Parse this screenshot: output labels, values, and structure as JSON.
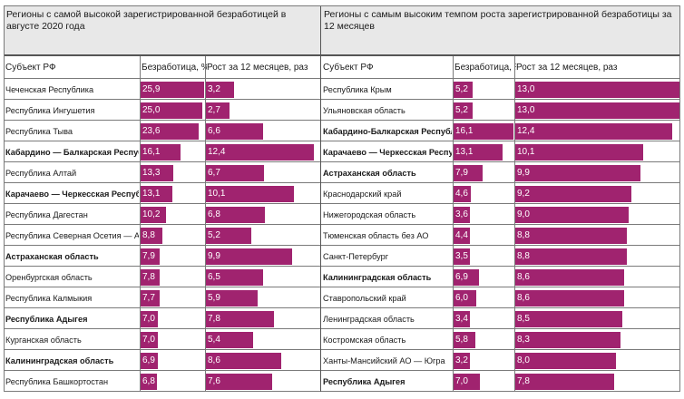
{
  "colors": {
    "bar": "#a0236f",
    "title_bg": "#e8e8e8",
    "grid": "#7a7a7a"
  },
  "left": {
    "title": "Регионы с самой высокой зарегистрированной безработицей в августе 2020 года",
    "headers": {
      "region": "Субъект РФ",
      "unemp": "Безработица, %",
      "growth": "Рост за 12 месяцев, раз"
    },
    "rows": [
      {
        "region": "Чеченская Республика",
        "bold": false,
        "unemp": 25.9,
        "unemp_label": "25,9",
        "growth": 3.2,
        "growth_label": "3,2"
      },
      {
        "region": "Республика Ингушетия",
        "bold": false,
        "unemp": 25.0,
        "unemp_label": "25,0",
        "growth": 2.7,
        "growth_label": "2,7"
      },
      {
        "region": "Республика Тыва",
        "bold": false,
        "unemp": 23.6,
        "unemp_label": "23,6",
        "growth": 6.6,
        "growth_label": "6,6"
      },
      {
        "region": "Кабардино — Балкарская Республика",
        "bold": true,
        "unemp": 16.1,
        "unemp_label": "16,1",
        "growth": 12.4,
        "growth_label": "12,4"
      },
      {
        "region": "Республика Алтай",
        "bold": false,
        "unemp": 13.3,
        "unemp_label": "13,3",
        "growth": 6.7,
        "growth_label": "6,7"
      },
      {
        "region": "Карачаево — Черкесская Республика",
        "bold": true,
        "unemp": 13.1,
        "unemp_label": "13,1",
        "growth": 10.1,
        "growth_label": "10,1"
      },
      {
        "region": "Республика Дагестан",
        "bold": false,
        "unemp": 10.2,
        "unemp_label": "10,2",
        "growth": 6.8,
        "growth_label": "6,8"
      },
      {
        "region": "Республика Северная Осетия — Алания",
        "bold": false,
        "unemp": 8.8,
        "unemp_label": "8,8",
        "growth": 5.2,
        "growth_label": "5,2"
      },
      {
        "region": "Астраханская область",
        "bold": true,
        "unemp": 7.9,
        "unemp_label": "7,9",
        "growth": 9.9,
        "growth_label": "9,9"
      },
      {
        "region": "Оренбургская область",
        "bold": false,
        "unemp": 7.8,
        "unemp_label": "7,8",
        "growth": 6.5,
        "growth_label": "6,5"
      },
      {
        "region": "Республика Калмыкия",
        "bold": false,
        "unemp": 7.7,
        "unemp_label": "7,7",
        "growth": 5.9,
        "growth_label": "5,9"
      },
      {
        "region": "Республика Адыгея",
        "bold": true,
        "unemp": 7.0,
        "unemp_label": "7,0",
        "growth": 7.8,
        "growth_label": "7,8"
      },
      {
        "region": "Курганская область",
        "bold": false,
        "unemp": 7.0,
        "unemp_label": "7,0",
        "growth": 5.4,
        "growth_label": "5,4"
      },
      {
        "region": "Калининградская область",
        "bold": true,
        "unemp": 6.9,
        "unemp_label": "6,9",
        "growth": 8.6,
        "growth_label": "8,6"
      },
      {
        "region": "Республика Башкортостан",
        "bold": false,
        "unemp": 6.8,
        "unemp_label": "6,8",
        "growth": 7.6,
        "growth_label": "7,6"
      }
    ]
  },
  "right": {
    "title": "Регионы с самым высоким темпом роста зарегистрированной безработицы за 12 месяцев",
    "headers": {
      "region": "Субъект РФ",
      "unemp": "Безработица, %",
      "growth": "Рост за 12 месяцев, раз"
    },
    "rows": [
      {
        "region": "Республика Крым",
        "bold": false,
        "unemp": 5.2,
        "unemp_label": "5,2",
        "growth": 13.0,
        "growth_label": "13,0"
      },
      {
        "region": "Ульяновская область",
        "bold": false,
        "unemp": 5.2,
        "unemp_label": "5,2",
        "growth": 13.0,
        "growth_label": "13,0"
      },
      {
        "region": "Кабардино-Балкарская Республика",
        "bold": true,
        "unemp": 16.1,
        "unemp_label": "16,1",
        "growth": 12.4,
        "growth_label": "12,4"
      },
      {
        "region": "Карачаево — Черкесская Республика",
        "bold": true,
        "unemp": 13.1,
        "unemp_label": "13,1",
        "growth": 10.1,
        "growth_label": "10,1"
      },
      {
        "region": "Астраханская область",
        "bold": true,
        "unemp": 7.9,
        "unemp_label": "7,9",
        "growth": 9.9,
        "growth_label": "9,9"
      },
      {
        "region": "Краснодарский край",
        "bold": false,
        "unemp": 4.6,
        "unemp_label": "4,6",
        "growth": 9.2,
        "growth_label": "9,2"
      },
      {
        "region": "Нижегородская область",
        "bold": false,
        "unemp": 3.6,
        "unemp_label": "3,6",
        "growth": 9.0,
        "growth_label": "9,0"
      },
      {
        "region": "Тюменская область без АО",
        "bold": false,
        "unemp": 4.4,
        "unemp_label": "4,4",
        "growth": 8.8,
        "growth_label": "8,8"
      },
      {
        "region": "Санкт-Петербург",
        "bold": false,
        "unemp": 3.5,
        "unemp_label": "3,5",
        "growth": 8.8,
        "growth_label": "8,8"
      },
      {
        "region": "Калининградская область",
        "bold": true,
        "unemp": 6.9,
        "unemp_label": "6,9",
        "growth": 8.6,
        "growth_label": "8,6"
      },
      {
        "region": "Ставропольский край",
        "bold": false,
        "unemp": 6.0,
        "unemp_label": "6,0",
        "growth": 8.6,
        "growth_label": "8,6"
      },
      {
        "region": "Ленинградская область",
        "bold": false,
        "unemp": 3.4,
        "unemp_label": "3,4",
        "growth": 8.5,
        "growth_label": "8,5"
      },
      {
        "region": "Костромская область",
        "bold": false,
        "unemp": 5.8,
        "unemp_label": "5,8",
        "growth": 8.3,
        "growth_label": "8,3"
      },
      {
        "region": "Ханты-Мансийский АО — Югра",
        "bold": false,
        "unemp": 3.2,
        "unemp_label": "3,2",
        "growth": 8.0,
        "growth_label": "8,0"
      },
      {
        "region": "Республика Адыгея",
        "bold": true,
        "unemp": 7.0,
        "unemp_label": "7,0",
        "growth": 7.8,
        "growth_label": "7,8"
      }
    ]
  },
  "chart_data": [
    {
      "type": "table",
      "title": "Регионы с самой высокой зарегистрированной безработицей в августе 2020 года",
      "columns": [
        "Субъект РФ",
        "Безработица, %",
        "Рост за 12 месяцев, раз"
      ],
      "categories": [
        "Чеченская Республика",
        "Республика Ингушетия",
        "Республика Тыва",
        "Кабардино — Балкарская Республика",
        "Республика Алтай",
        "Карачаево — Черкесская Республика",
        "Республика Дагестан",
        "Республика Северная Осетия — Алания",
        "Астраханская область",
        "Оренбургская область",
        "Республика Калмыкия",
        "Республика Адыгея",
        "Курганская область",
        "Калининградская область",
        "Республика Башкортостан"
      ],
      "series": [
        {
          "name": "Безработица, %",
          "values": [
            25.9,
            25.0,
            23.6,
            16.1,
            13.3,
            13.1,
            10.2,
            8.8,
            7.9,
            7.8,
            7.7,
            7.0,
            7.0,
            6.9,
            6.8
          ]
        },
        {
          "name": "Рост за 12 месяцев, раз",
          "values": [
            3.2,
            2.7,
            6.6,
            12.4,
            6.7,
            10.1,
            6.8,
            5.2,
            9.9,
            6.5,
            5.9,
            7.8,
            5.4,
            8.6,
            7.6
          ]
        }
      ]
    },
    {
      "type": "table",
      "title": "Регионы с самым высоким темпом роста зарегистрированной безработицы за 12 месяцев",
      "columns": [
        "Субъект РФ",
        "Безработица, %",
        "Рост за 12 месяцев, раз"
      ],
      "categories": [
        "Республика Крым",
        "Ульяновская область",
        "Кабардино-Балкарская Республика",
        "Карачаево — Черкесская Республика",
        "Астраханская область",
        "Краснодарский край",
        "Нижегородская область",
        "Тюменская область без АО",
        "Санкт-Петербург",
        "Калининградская область",
        "Ставропольский край",
        "Ленинградская область",
        "Костромская область",
        "Ханты-Мансийский АО — Югра",
        "Республика Адыгея"
      ],
      "series": [
        {
          "name": "Безработица, %",
          "values": [
            5.2,
            5.2,
            16.1,
            13.1,
            7.9,
            4.6,
            3.6,
            4.4,
            3.5,
            6.9,
            6.0,
            3.4,
            5.8,
            3.2,
            7.0
          ]
        },
        {
          "name": "Рост за 12 месяцев, раз",
          "values": [
            13.0,
            13.0,
            12.4,
            10.1,
            9.9,
            9.2,
            9.0,
            8.8,
            8.8,
            8.6,
            8.6,
            8.5,
            8.3,
            8.0,
            7.8
          ]
        }
      ]
    }
  ]
}
